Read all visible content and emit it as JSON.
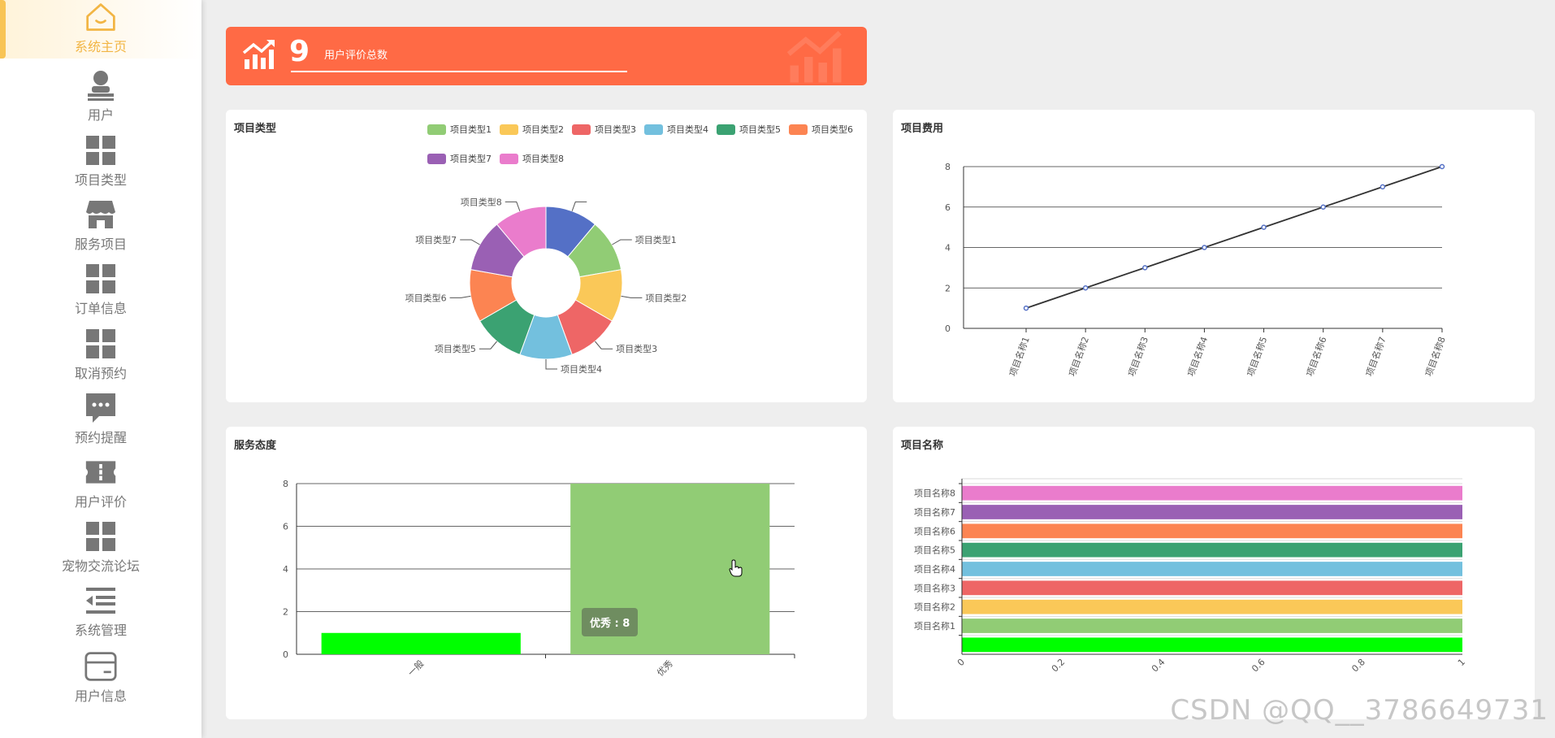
{
  "sidebar": {
    "items": [
      {
        "label": "系统主页",
        "icon": "home-icon",
        "active": true
      },
      {
        "label": "用户",
        "icon": "user-icon"
      },
      {
        "label": "项目类型",
        "icon": "grid-icon"
      },
      {
        "label": "服务项目",
        "icon": "shop-icon"
      },
      {
        "label": "订单信息",
        "icon": "grid-icon"
      },
      {
        "label": "取消预约",
        "icon": "grid-icon"
      },
      {
        "label": "预约提醒",
        "icon": "chat-icon"
      },
      {
        "label": "用户评价",
        "icon": "ticket-icon"
      },
      {
        "label": "宠物交流论坛",
        "icon": "grid-icon"
      },
      {
        "label": "系统管理",
        "icon": "menu-icon"
      },
      {
        "label": "用户信息",
        "icon": "card-icon"
      }
    ]
  },
  "stat": {
    "value": "9",
    "label": "用户评价总数"
  },
  "panels": {
    "pie_title": "项目类型",
    "line_title": "项目费用",
    "bar_title": "服务态度",
    "hbar_title": "项目名称"
  },
  "tooltip": {
    "text": "优秀 : 8"
  },
  "watermark": "CSDN @QQ__3786649731",
  "colors": {
    "accent": "#ff6a45",
    "active": "#f8c455",
    "palette": [
      "#5470c6",
      "#91cc75",
      "#fac858",
      "#ee6666",
      "#73c0de",
      "#3ba272",
      "#fc8452",
      "#9a60b4",
      "#ea7ccc"
    ]
  },
  "chart_data": [
    {
      "type": "pie",
      "title": "项目类型",
      "legend_position": "top-right",
      "slices": [
        {
          "name": "",
          "value": 1,
          "color": "#5470c6"
        },
        {
          "name": "项目类型1",
          "value": 1,
          "color": "#91cc75"
        },
        {
          "name": "项目类型2",
          "value": 1,
          "color": "#fac858"
        },
        {
          "name": "项目类型3",
          "value": 1,
          "color": "#ee6666"
        },
        {
          "name": "项目类型4",
          "value": 1,
          "color": "#73c0de"
        },
        {
          "name": "项目类型5",
          "value": 1,
          "color": "#3ba272"
        },
        {
          "name": "项目类型6",
          "value": 1,
          "color": "#fc8452"
        },
        {
          "name": "项目类型7",
          "value": 1,
          "color": "#9a60b4"
        },
        {
          "name": "项目类型8",
          "value": 1,
          "color": "#ea7ccc"
        }
      ],
      "legend": [
        {
          "name": "项目类型1",
          "color": "#91cc75"
        },
        {
          "name": "项目类型2",
          "color": "#fac858"
        },
        {
          "name": "项目类型3",
          "color": "#ee6666"
        },
        {
          "name": "项目类型4",
          "color": "#73c0de"
        },
        {
          "name": "项目类型5",
          "color": "#3ba272"
        },
        {
          "name": "项目类型6",
          "color": "#fc8452"
        },
        {
          "name": "项目类型7",
          "color": "#9a60b4"
        },
        {
          "name": "项目类型8",
          "color": "#ea7ccc"
        }
      ]
    },
    {
      "type": "line",
      "title": "项目费用",
      "categories": [
        "项目名称1",
        "项目名称2",
        "项目名称3",
        "项目名称4",
        "项目名称5",
        "项目名称6",
        "项目名称7",
        "项目名称8"
      ],
      "series": [
        {
          "values": [
            1,
            2,
            3,
            4,
            5,
            6,
            7,
            8
          ]
        }
      ],
      "ylim": [
        0,
        8
      ],
      "yticks": [
        0,
        2,
        4,
        6,
        8
      ],
      "grid": true
    },
    {
      "type": "bar",
      "title": "服务态度",
      "categories": [
        "一般",
        "优秀"
      ],
      "values": [
        1,
        8
      ],
      "colors": [
        "#00ff00",
        "#91cc75"
      ],
      "ylim": [
        0,
        8
      ],
      "yticks": [
        0,
        2,
        4,
        6,
        8
      ],
      "grid": true
    },
    {
      "type": "bar",
      "orientation": "horizontal",
      "title": "项目名称",
      "categories": [
        "",
        "项目名称1",
        "项目名称2",
        "项目名称3",
        "项目名称4",
        "项目名称5",
        "项目名称6",
        "项目名称7",
        "项目名称8"
      ],
      "values": [
        1,
        1,
        1,
        1,
        1,
        1,
        1,
        1,
        1
      ],
      "colors": [
        "#00ff00",
        "#91cc75",
        "#fac858",
        "#ee6666",
        "#73c0de",
        "#3ba272",
        "#fc8452",
        "#9a60b4",
        "#ea7ccc"
      ],
      "xlim": [
        0,
        1
      ],
      "xticks": [
        "0",
        "0.2",
        "0.4",
        "0.6",
        "0.8",
        "1"
      ]
    }
  ]
}
